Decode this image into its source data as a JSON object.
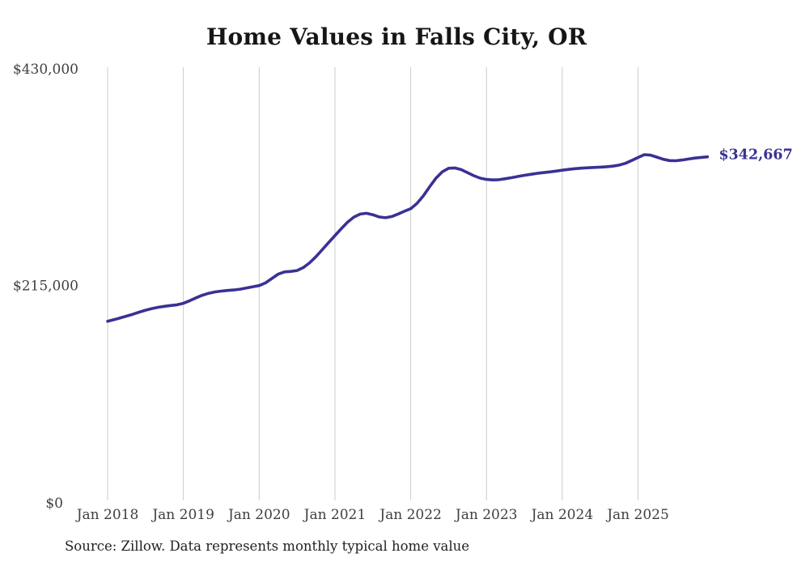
{
  "page": {
    "title": "Home Values in Falls City, OR",
    "source_note": "Source: Zillow. Data represents monthly typical home value"
  },
  "chart_data": {
    "type": "line",
    "title": "Home Values in Falls City, OR",
    "xlabel": "",
    "ylabel": "",
    "ylim": [
      0,
      430000
    ],
    "grid": "vertical gridlines at each January tick",
    "legend": "none",
    "end_label": "$342,667",
    "x_tick_labels": [
      "Jan 2018",
      "Jan 2019",
      "Jan 2020",
      "Jan 2021",
      "Jan 2022",
      "Jan 2023",
      "Jan 2024",
      "Jan 2025"
    ],
    "y_ticks": [
      {
        "value": 430000,
        "label": "$430,000"
      },
      {
        "value": 215000,
        "label": "$215,000"
      },
      {
        "value": 0,
        "label": "$0"
      }
    ],
    "colors": {
      "line": "#3a3193",
      "end_label": "#3a3193",
      "gridline": "#cccccc",
      "tick_label": "#3f3f3f",
      "title": "#161616",
      "source": "#222222"
    },
    "series": [
      {
        "name": "Monthly typical home value",
        "x": [
          "Jan 2018",
          "Feb 2018",
          "Mar 2018",
          "Apr 2018",
          "May 2018",
          "Jun 2018",
          "Jul 2018",
          "Aug 2018",
          "Sep 2018",
          "Oct 2018",
          "Nov 2018",
          "Dec 2018",
          "Jan 2019",
          "Feb 2019",
          "Mar 2019",
          "Apr 2019",
          "May 2019",
          "Jun 2019",
          "Jul 2019",
          "Aug 2019",
          "Sep 2019",
          "Oct 2019",
          "Nov 2019",
          "Dec 2019",
          "Jan 2020",
          "Feb 2020",
          "Mar 2020",
          "Apr 2020",
          "May 2020",
          "Jun 2020",
          "Jul 2020",
          "Aug 2020",
          "Sep 2020",
          "Oct 2020",
          "Nov 2020",
          "Dec 2020",
          "Jan 2021",
          "Feb 2021",
          "Mar 2021",
          "Apr 2021",
          "May 2021",
          "Jun 2021",
          "Jul 2021",
          "Aug 2021",
          "Sep 2021",
          "Oct 2021",
          "Nov 2021",
          "Dec 2021",
          "Jan 2022",
          "Feb 2022",
          "Mar 2022",
          "Apr 2022",
          "May 2022",
          "Jun 2022",
          "Jul 2022",
          "Aug 2022",
          "Sep 2022",
          "Oct 2022",
          "Nov 2022",
          "Dec 2022",
          "Jan 2023",
          "Feb 2023",
          "Mar 2023",
          "Apr 2023",
          "May 2023",
          "Jun 2023",
          "Jul 2023",
          "Aug 2023",
          "Sep 2023",
          "Oct 2023",
          "Nov 2023",
          "Dec 2023",
          "Jan 2024",
          "Feb 2024",
          "Mar 2024",
          "Apr 2024",
          "May 2024",
          "Jun 2024",
          "Jul 2024",
          "Aug 2024",
          "Sep 2024",
          "Oct 2024",
          "Nov 2024",
          "Dec 2024",
          "Jan 2025",
          "Feb 2025",
          "Mar 2025",
          "Apr 2025",
          "May 2025",
          "Jun 2025",
          "Jul 2025",
          "Aug 2025",
          "Sep 2025",
          "Oct 2025",
          "Nov 2025",
          "Dec 2025"
        ],
        "values": [
          179400,
          181000,
          182800,
          184500,
          186400,
          188500,
          190400,
          192000,
          193300,
          194300,
          195100,
          195800,
          197200,
          199800,
          202700,
          205300,
          207200,
          208600,
          209400,
          210000,
          210500,
          211300,
          212500,
          213700,
          214800,
          217500,
          221800,
          226200,
          228400,
          228900,
          229800,
          232800,
          237500,
          243600,
          250500,
          257500,
          264400,
          271300,
          277800,
          282800,
          285800,
          286600,
          285200,
          283000,
          282200,
          283400,
          285900,
          288600,
          291200,
          296500,
          304000,
          313000,
          321500,
          327800,
          331300,
          331600,
          329900,
          327000,
          323900,
          321500,
          320200,
          319700,
          320000,
          320900,
          322000,
          323200,
          324300,
          325300,
          326200,
          327000,
          327700,
          328500,
          329400,
          330200,
          330900,
          331400,
          331800,
          332100,
          332400,
          332800,
          333400,
          334400,
          336200,
          339000,
          342000,
          344800,
          344300,
          342300,
          340200,
          338900,
          338800,
          339500,
          340500,
          341400,
          342100,
          342667
        ]
      }
    ]
  }
}
